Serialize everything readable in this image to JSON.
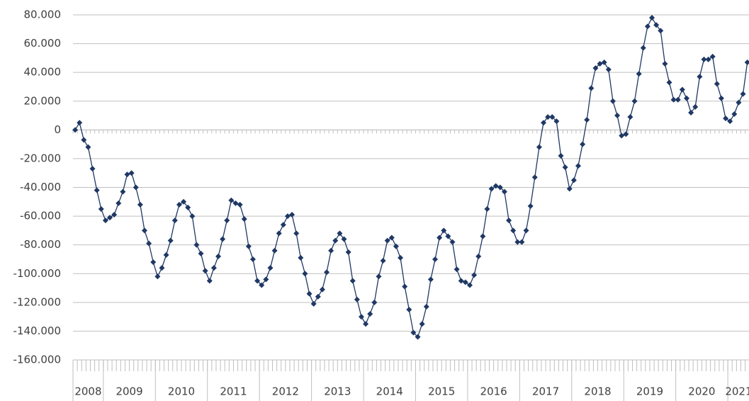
{
  "chart_data": {
    "type": "line",
    "color": "#1f3864",
    "grid": true,
    "ylim": [
      -160000,
      80000
    ],
    "yticks": [
      {
        "value": -160000,
        "label": "-160.000"
      },
      {
        "value": -140000,
        "label": "-140.000"
      },
      {
        "value": -120000,
        "label": "-120.000"
      },
      {
        "value": -100000,
        "label": "-100.000"
      },
      {
        "value": -80000,
        "label": "-80.000"
      },
      {
        "value": -60000,
        "label": "-60.000"
      },
      {
        "value": -40000,
        "label": "-40.000"
      },
      {
        "value": -20000,
        "label": "-20.000"
      },
      0,
      {
        "value": 20000,
        "label": "20.000"
      },
      {
        "value": 40000,
        "label": "40.000"
      },
      {
        "value": 60000,
        "label": "60.000"
      },
      {
        "value": 80000,
        "label": "80.000"
      }
    ],
    "categories": [
      "2008",
      "2008",
      "2008",
      "2008",
      "2008",
      "2008",
      "2008",
      "2009",
      "2009",
      "2009",
      "2009",
      "2009",
      "2009",
      "2009",
      "2009",
      "2009",
      "2009",
      "2009",
      "2009",
      "2010",
      "2010",
      "2010",
      "2010",
      "2010",
      "2010",
      "2010",
      "2010",
      "2010",
      "2010",
      "2010",
      "2010",
      "2011",
      "2011",
      "2011",
      "2011",
      "2011",
      "2011",
      "2011",
      "2011",
      "2011",
      "2011",
      "2011",
      "2011",
      "2012",
      "2012",
      "2012",
      "2012",
      "2012",
      "2012",
      "2012",
      "2012",
      "2012",
      "2012",
      "2012",
      "2012",
      "2013",
      "2013",
      "2013",
      "2013",
      "2013",
      "2013",
      "2013",
      "2013",
      "2013",
      "2013",
      "2013",
      "2013",
      "2014",
      "2014",
      "2014",
      "2014",
      "2014",
      "2014",
      "2014",
      "2014",
      "2014",
      "2014",
      "2014",
      "2014",
      "2015",
      "2015",
      "2015",
      "2015",
      "2015",
      "2015",
      "2015",
      "2015",
      "2015",
      "2015",
      "2015",
      "2015",
      "2016",
      "2016",
      "2016",
      "2016",
      "2016",
      "2016",
      "2016",
      "2016",
      "2016",
      "2016",
      "2016",
      "2016",
      "2017",
      "2017",
      "2017",
      "2017",
      "2017",
      "2017",
      "2017",
      "2017",
      "2017",
      "2017",
      "2017",
      "2017",
      "2018",
      "2018",
      "2018",
      "2018",
      "2018",
      "2018",
      "2018",
      "2018",
      "2018",
      "2018",
      "2018",
      "2018",
      "2019",
      "2019",
      "2019",
      "2019",
      "2019",
      "2019",
      "2019",
      "2019",
      "2019",
      "2019",
      "2019",
      "2019",
      "2020",
      "2020",
      "2020",
      "2020",
      "2020",
      "2020",
      "2020",
      "2020",
      "2020",
      "2020",
      "2020",
      "2020",
      "2021",
      "2021",
      "2021",
      "2021",
      "2021"
    ],
    "values": [
      0,
      5000,
      -7000,
      -12000,
      -27000,
      -42000,
      -55000,
      -63000,
      -61000,
      -59000,
      -51000,
      -43000,
      -31000,
      -30000,
      -40000,
      -52000,
      -70000,
      -79000,
      -92000,
      -102000,
      -96000,
      -87000,
      -77000,
      -63000,
      -52000,
      -50000,
      -54000,
      -60000,
      -80000,
      -86000,
      -98000,
      -105000,
      -96000,
      -88000,
      -76000,
      -63000,
      -49000,
      -51000,
      -52000,
      -62000,
      -81000,
      -90000,
      -105000,
      -108000,
      -104000,
      -96000,
      -84000,
      -72000,
      -66000,
      -60000,
      -59000,
      -72000,
      -89000,
      -100000,
      -114000,
      -121000,
      -116000,
      -111000,
      -99000,
      -84000,
      -77000,
      -72000,
      -76000,
      -85000,
      -105000,
      -118000,
      -130000,
      -135000,
      -128000,
      -120000,
      -102000,
      -91000,
      -77000,
      -75000,
      -81000,
      -89000,
      -109000,
      -125000,
      -141000,
      -144000,
      -135000,
      -123000,
      -104000,
      -90000,
      -75000,
      -70000,
      -74000,
      -78000,
      -97000,
      -105000,
      -106000,
      -108000,
      -101000,
      -88000,
      -74000,
      -55000,
      -41000,
      -39000,
      -40000,
      -43000,
      -63000,
      -70000,
      -78000,
      -78000,
      -70000,
      -53000,
      -33000,
      -12000,
      5000,
      9000,
      9000,
      6000,
      -18000,
      -26000,
      -41000,
      -35000,
      -25000,
      -10000,
      7000,
      29000,
      43000,
      46000,
      47000,
      42000,
      20000,
      10000,
      -4000,
      -3000,
      9000,
      20000,
      39000,
      57000,
      72000,
      78000,
      73000,
      69000,
      46000,
      33000,
      21000,
      21000,
      28000,
      22000,
      12000,
      16000,
      37000,
      49000,
      49000,
      51000,
      32000,
      22000,
      8000,
      6000,
      11000,
      19000,
      25000,
      47000
    ]
  }
}
